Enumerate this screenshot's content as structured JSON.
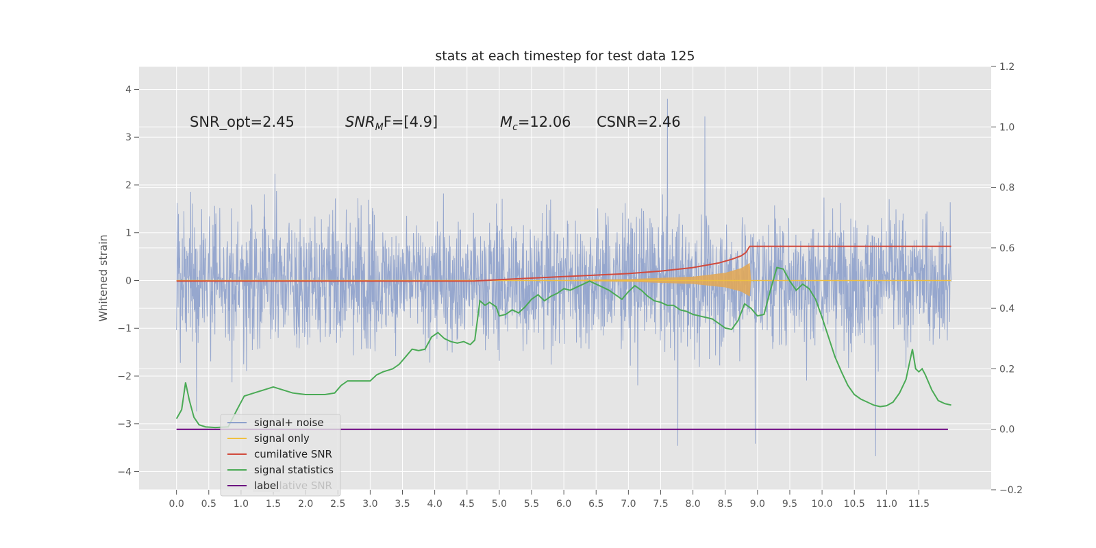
{
  "chart_data": {
    "type": "line",
    "title": "stats at each timestep for test data 125",
    "ylabel": "Whitened strain",
    "xlabel": "",
    "xlim": [
      -0.58,
      12.62
    ],
    "ylim": [
      -4.38,
      4.48
    ],
    "y2lim": [
      -0.2,
      1.2
    ],
    "x_ticks": [
      "0.0",
      "0.5",
      "1.0",
      "1.5",
      "2.0",
      "2.5",
      "3.0",
      "3.5",
      "4.0",
      "4.5",
      "5.0",
      "5.5",
      "6.0",
      "6.5",
      "7.0",
      "7.5",
      "8.0",
      "8.5",
      "9.0",
      "9.5",
      "10.0",
      "10.5",
      "11.0",
      "11.5"
    ],
    "y_ticks": [
      "4",
      "3",
      "2",
      "1",
      "0",
      "−1",
      "−2",
      "−3",
      "−4"
    ],
    "y2_ticks": [
      "1.2",
      "1.0",
      "0.8",
      "0.6",
      "0.4",
      "0.2",
      "0.0",
      "−0.2"
    ],
    "annotations": [
      "SNR_opt=2.45",
      "SNR",
      "M",
      "F=[4.9]",
      "c",
      "=12.06",
      "CSNR=2.46"
    ],
    "grid": true,
    "legend_position": "lower-left",
    "series": [
      {
        "name": "signal+ noise",
        "color": "#8da0cb",
        "x_range": [
          0.0,
          12.0
        ],
        "y_mean": 0.0,
        "y_spread_typical": [
          -1.9,
          2.0
        ],
        "y_extremes": [
          -3.9,
          4.1
        ]
      },
      {
        "name": "signal only",
        "color": "#f0c040",
        "x": [
          0.0,
          5.0,
          6.0,
          7.0,
          8.0,
          8.5,
          8.75,
          8.88,
          8.9,
          12.0
        ],
        "amplitude": [
          0.0,
          0.0,
          0.01,
          0.03,
          0.08,
          0.16,
          0.26,
          0.37,
          0.0,
          0.0
        ]
      },
      {
        "name": "cumilative SNR",
        "axis": "right",
        "color": "#d14a3c",
        "x": [
          0.0,
          1.0,
          2.0,
          3.0,
          4.0,
          4.6,
          5.0,
          5.5,
          6.0,
          6.5,
          7.0,
          7.5,
          8.0,
          8.4,
          8.6,
          8.75,
          8.82,
          8.88,
          9.0,
          12.0
        ],
        "y": [
          0.49,
          0.49,
          0.49,
          0.49,
          0.49,
          0.49,
          0.495,
          0.5,
          0.505,
          0.51,
          0.515,
          0.523,
          0.535,
          0.55,
          0.562,
          0.574,
          0.585,
          0.605,
          0.605,
          0.605
        ]
      },
      {
        "name": "signal statistics",
        "axis": "right",
        "color": "#4aaa55",
        "x": [
          0.0,
          0.08,
          0.14,
          0.2,
          0.27,
          0.35,
          0.45,
          0.6,
          0.8,
          0.95,
          1.05,
          1.2,
          1.35,
          1.5,
          1.65,
          1.8,
          2.0,
          2.2,
          2.3,
          2.45,
          2.55,
          2.65,
          2.8,
          3.0,
          3.1,
          3.2,
          3.35,
          3.45,
          3.55,
          3.65,
          3.75,
          3.85,
          3.95,
          4.05,
          4.15,
          4.25,
          4.35,
          4.45,
          4.55,
          4.62,
          4.7,
          4.78,
          4.85,
          4.95,
          5.0,
          5.1,
          5.2,
          5.3,
          5.4,
          5.5,
          5.6,
          5.7,
          5.8,
          5.9,
          6.0,
          6.1,
          6.2,
          6.3,
          6.4,
          6.5,
          6.6,
          6.7,
          6.8,
          6.9,
          7.0,
          7.1,
          7.2,
          7.3,
          7.4,
          7.5,
          7.6,
          7.7,
          7.8,
          7.9,
          8.0,
          8.1,
          8.2,
          8.3,
          8.4,
          8.5,
          8.6,
          8.7,
          8.8,
          8.9,
          9.0,
          9.1,
          9.2,
          9.3,
          9.4,
          9.5,
          9.6,
          9.7,
          9.8,
          9.9,
          10.0,
          10.1,
          10.2,
          10.3,
          10.4,
          10.5,
          10.6,
          10.7,
          10.8,
          10.9,
          11.0,
          11.1,
          11.2,
          11.3,
          11.4,
          11.45,
          11.5,
          11.55,
          11.6,
          11.7,
          11.8,
          11.9,
          12.0
        ],
        "y": [
          0.035,
          0.065,
          0.155,
          0.095,
          0.04,
          0.015,
          0.008,
          0.006,
          0.008,
          0.07,
          0.11,
          0.12,
          0.13,
          0.14,
          0.13,
          0.12,
          0.115,
          0.115,
          0.115,
          0.12,
          0.145,
          0.16,
          0.16,
          0.16,
          0.18,
          0.19,
          0.2,
          0.215,
          0.24,
          0.265,
          0.26,
          0.265,
          0.305,
          0.32,
          0.3,
          0.29,
          0.285,
          0.29,
          0.28,
          0.295,
          0.425,
          0.41,
          0.42,
          0.405,
          0.375,
          0.38,
          0.395,
          0.385,
          0.405,
          0.43,
          0.445,
          0.425,
          0.44,
          0.45,
          0.465,
          0.46,
          0.47,
          0.48,
          0.49,
          0.48,
          0.47,
          0.46,
          0.445,
          0.43,
          0.455,
          0.475,
          0.46,
          0.44,
          0.425,
          0.42,
          0.41,
          0.41,
          0.395,
          0.39,
          0.38,
          0.375,
          0.37,
          0.365,
          0.35,
          0.335,
          0.33,
          0.36,
          0.415,
          0.4,
          0.375,
          0.38,
          0.46,
          0.535,
          0.53,
          0.49,
          0.46,
          0.48,
          0.465,
          0.43,
          0.37,
          0.305,
          0.24,
          0.19,
          0.145,
          0.115,
          0.1,
          0.09,
          0.08,
          0.075,
          0.078,
          0.09,
          0.12,
          0.165,
          0.265,
          0.2,
          0.19,
          0.2,
          0.18,
          0.13,
          0.095,
          0.085,
          0.08
        ]
      },
      {
        "name": "label",
        "axis": "right",
        "color": "#6b0080",
        "x": [
          0.0,
          11.95
        ],
        "y": [
          0.0,
          0.0
        ]
      }
    ],
    "legend_overlap_text": "cumilative SNR"
  }
}
